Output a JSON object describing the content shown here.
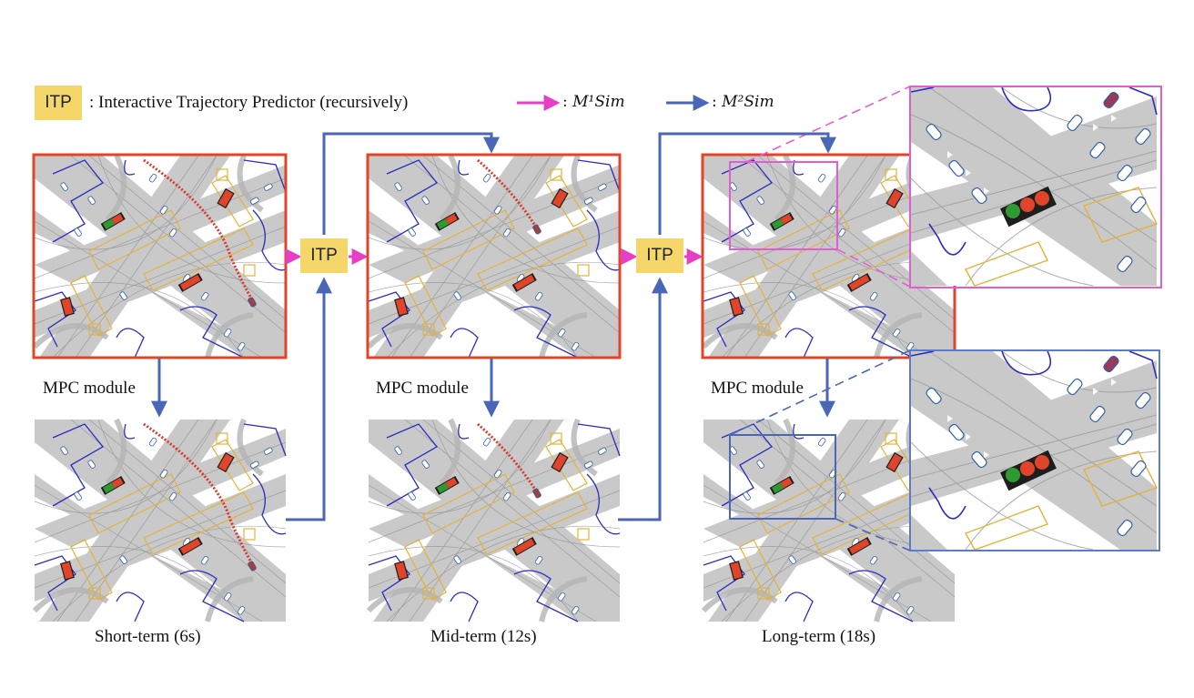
{
  "legend": {
    "itp_box": "ITP",
    "itp_description": ": Interactive Trajectory Predictor (recursively)",
    "m1_prefix": ": ",
    "m1_label": "M¹Sim",
    "m2_prefix": ": ",
    "m2_label": "M²Sim"
  },
  "itp_blocks": [
    "ITP",
    "ITP"
  ],
  "mpc_labels": [
    "MPC module",
    "MPC module",
    "MPC module"
  ],
  "horizon_labels": [
    "Short-term (6s)",
    "Mid-term (12s)",
    "Long-term (18s)"
  ],
  "colors": {
    "m1_arrow": "#e63fc6",
    "m2_arrow": "#4a67b7",
    "top_frame": "#e0452a",
    "zoom_top_frame": "#e25dd3",
    "zoom_bottom_frame": "#5b7cc9",
    "itp_fill": "#f5d769",
    "road": "#c9c9c9",
    "boundary": "#2c2cbf",
    "crosswalk": "#e3b33a",
    "light_red": "#e0452a",
    "light_green": "#2e9b32"
  }
}
